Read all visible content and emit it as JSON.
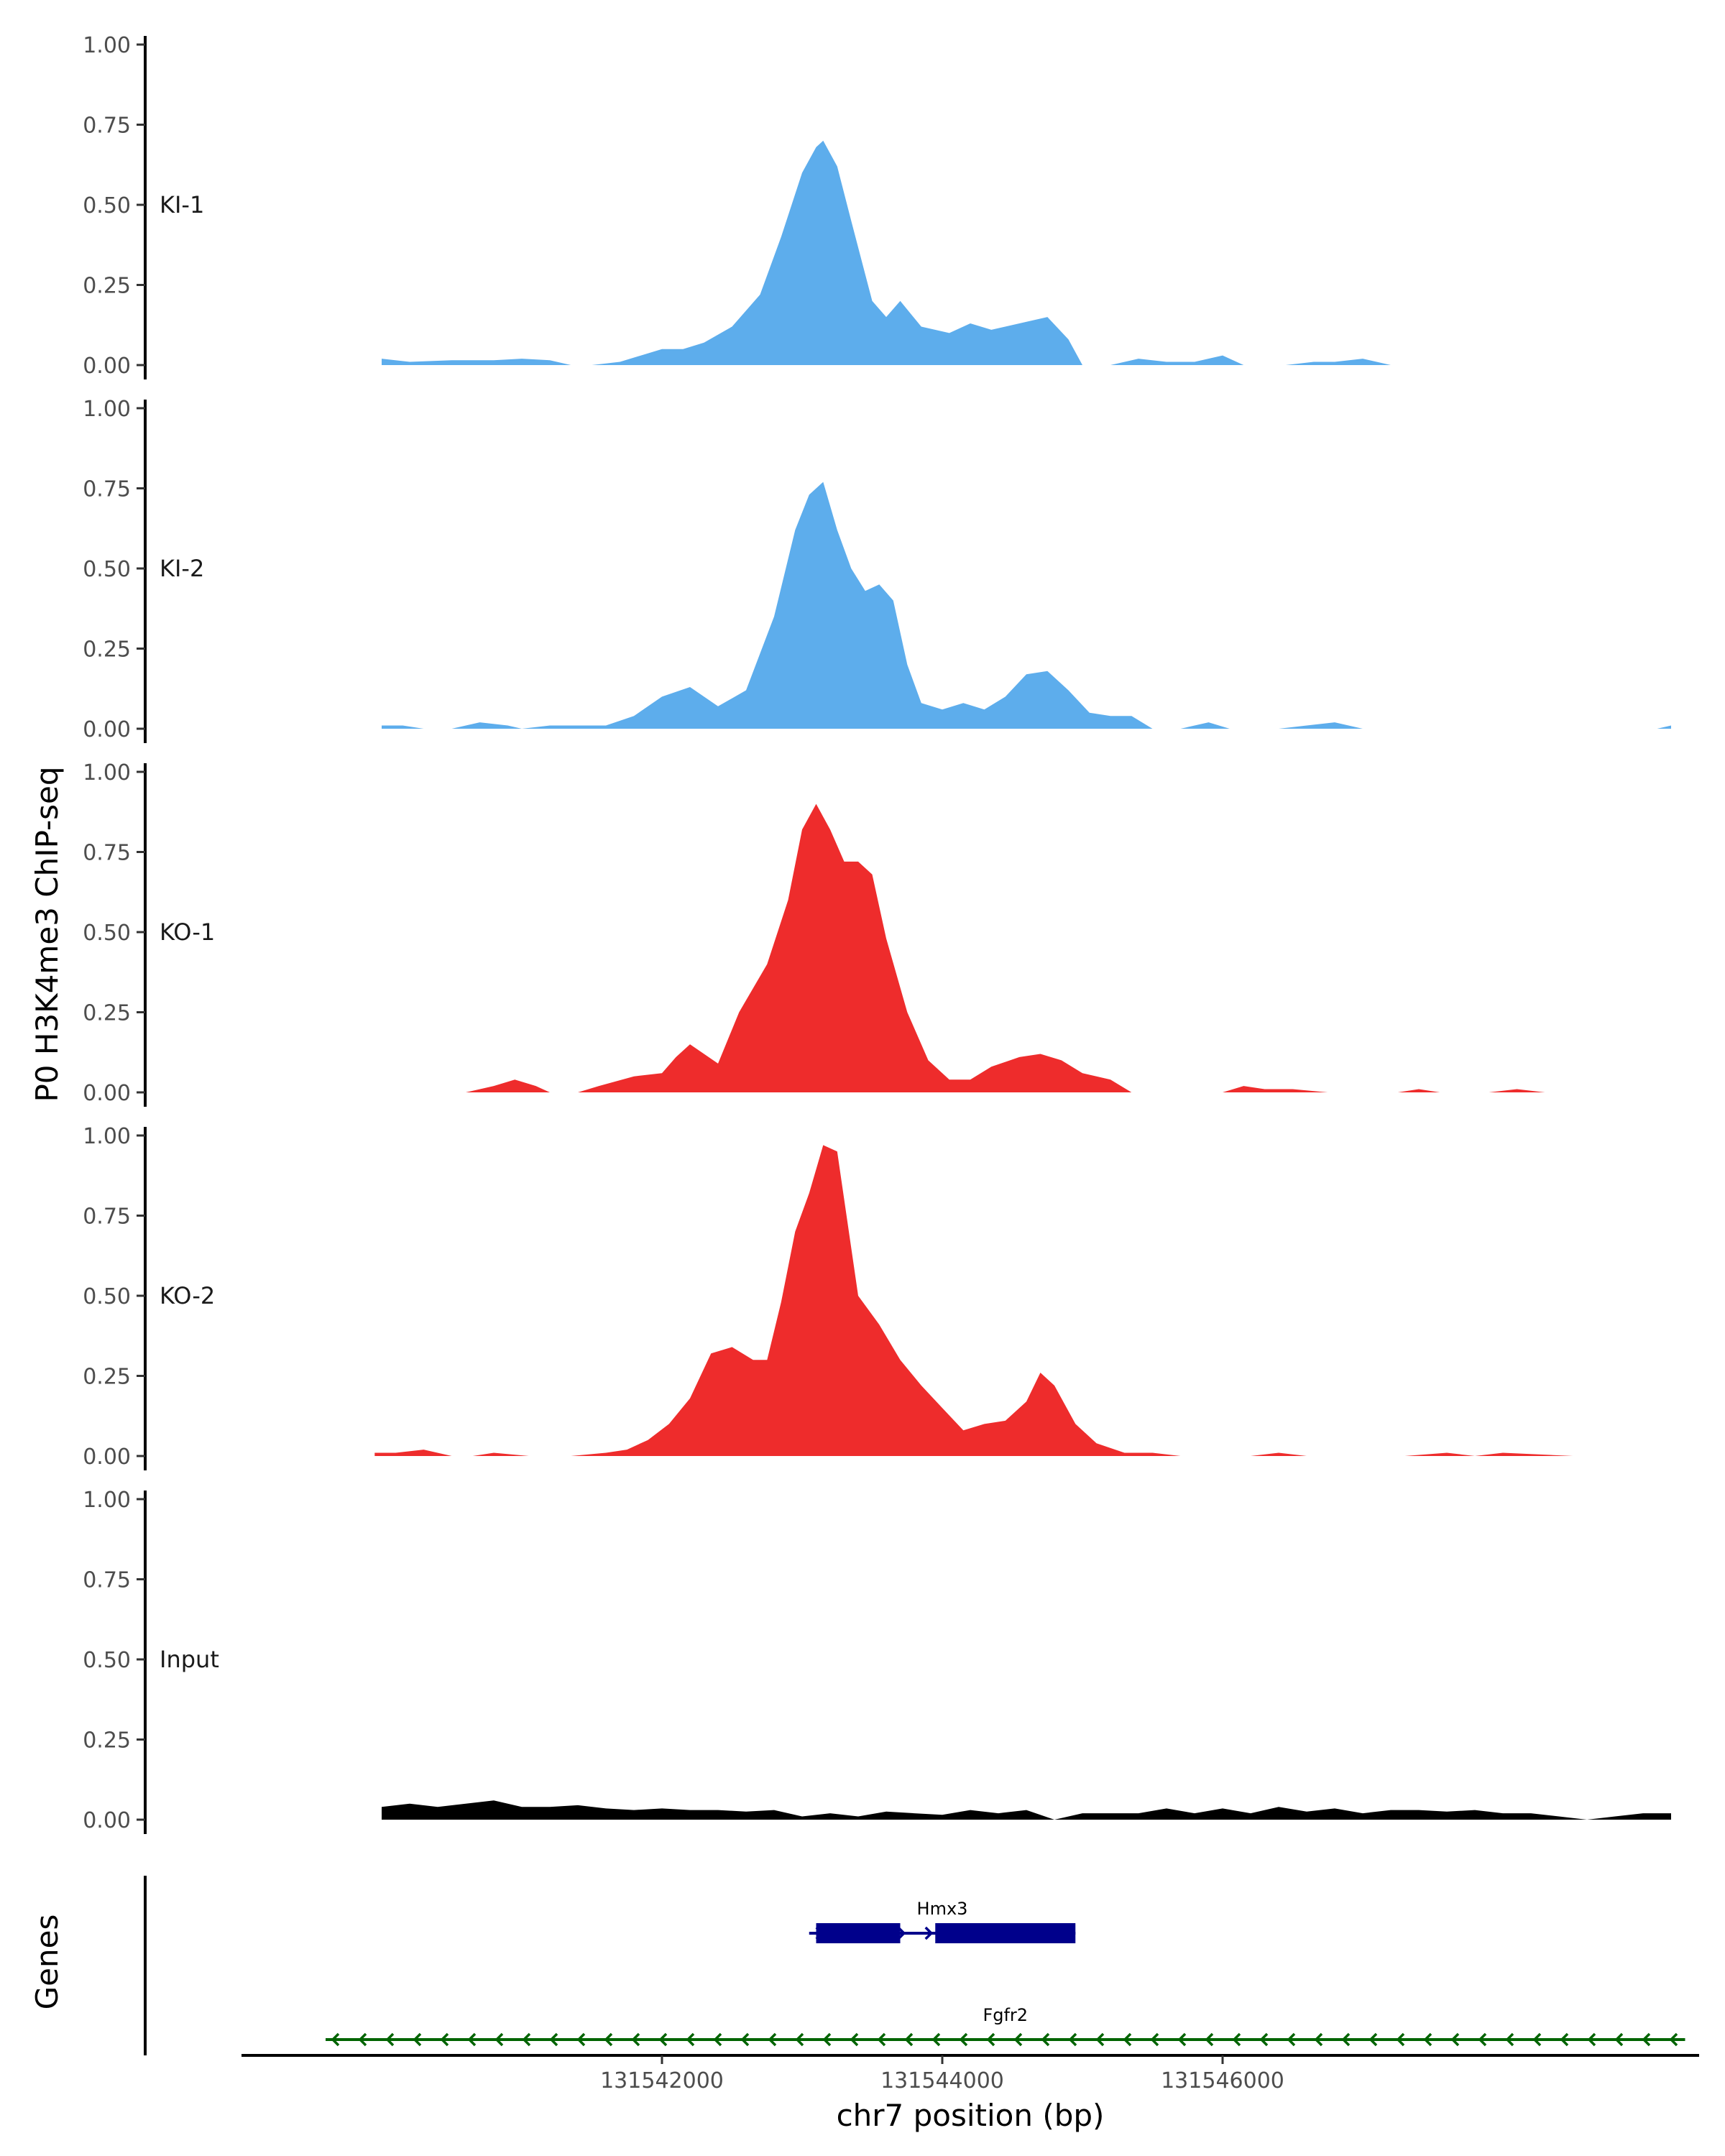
{
  "chart_data": {
    "type": "area",
    "ylabel": "P0 H3K4me3 ChIP-seq",
    "genes_label": "Genes",
    "xlabel": "chr7 position (bp)",
    "xlim": [
      131539000,
      131549400
    ],
    "ylim": [
      0,
      1.0
    ],
    "y_ticks": [
      "0.00",
      "0.25",
      "0.50",
      "0.75",
      "1.00"
    ],
    "x_ticks": [
      {
        "value": 131542000,
        "label": "131542000"
      },
      {
        "value": 131544000,
        "label": "131544000"
      },
      {
        "value": 131546000,
        "label": "131546000"
      }
    ],
    "grid": false,
    "tracks": [
      {
        "name": "KI-1",
        "color": "#5DADEC",
        "points": [
          [
            131540000,
            0.02
          ],
          [
            131540200,
            0.01
          ],
          [
            131540500,
            0.015
          ],
          [
            131540800,
            0.015
          ],
          [
            131541000,
            0.02
          ],
          [
            131541200,
            0.015
          ],
          [
            131541350,
            0.0
          ],
          [
            131541500,
            0.0
          ],
          [
            131541700,
            0.01
          ],
          [
            131541850,
            0.03
          ],
          [
            131542000,
            0.05
          ],
          [
            131542150,
            0.05
          ],
          [
            131542300,
            0.07
          ],
          [
            131542500,
            0.12
          ],
          [
            131542700,
            0.22
          ],
          [
            131542850,
            0.4
          ],
          [
            131543000,
            0.6
          ],
          [
            131543100,
            0.68
          ],
          [
            131543150,
            0.7
          ],
          [
            131543250,
            0.62
          ],
          [
            131543350,
            0.45
          ],
          [
            131543500,
            0.2
          ],
          [
            131543600,
            0.15
          ],
          [
            131543700,
            0.2
          ],
          [
            131543850,
            0.12
          ],
          [
            131544050,
            0.1
          ],
          [
            131544200,
            0.13
          ],
          [
            131544350,
            0.11
          ],
          [
            131544550,
            0.13
          ],
          [
            131544750,
            0.15
          ],
          [
            131544900,
            0.08
          ],
          [
            131545000,
            0.0
          ],
          [
            131545200,
            0.0
          ],
          [
            131545400,
            0.02
          ],
          [
            131545600,
            0.01
          ],
          [
            131545800,
            0.01
          ],
          [
            131546000,
            0.03
          ],
          [
            131546150,
            0.0
          ],
          [
            131546450,
            0.0
          ],
          [
            131546650,
            0.01
          ],
          [
            131546800,
            0.01
          ],
          [
            131547000,
            0.02
          ],
          [
            131547200,
            0.0
          ]
        ]
      },
      {
        "name": "KI-2",
        "color": "#5DADEC",
        "points": [
          [
            131540000,
            0.01
          ],
          [
            131540150,
            0.01
          ],
          [
            131540300,
            0.0
          ],
          [
            131540500,
            0.0
          ],
          [
            131540700,
            0.02
          ],
          [
            131540900,
            0.01
          ],
          [
            131541000,
            0.0
          ],
          [
            131541200,
            0.01
          ],
          [
            131541400,
            0.01
          ],
          [
            131541600,
            0.01
          ],
          [
            131541800,
            0.04
          ],
          [
            131542000,
            0.1
          ],
          [
            131542200,
            0.13
          ],
          [
            131542400,
            0.07
          ],
          [
            131542600,
            0.12
          ],
          [
            131542800,
            0.35
          ],
          [
            131542950,
            0.62
          ],
          [
            131543050,
            0.73
          ],
          [
            131543150,
            0.77
          ],
          [
            131543250,
            0.62
          ],
          [
            131543350,
            0.5
          ],
          [
            131543450,
            0.43
          ],
          [
            131543550,
            0.45
          ],
          [
            131543650,
            0.4
          ],
          [
            131543750,
            0.2
          ],
          [
            131543850,
            0.08
          ],
          [
            131544000,
            0.06
          ],
          [
            131544150,
            0.08
          ],
          [
            131544300,
            0.06
          ],
          [
            131544450,
            0.1
          ],
          [
            131544600,
            0.17
          ],
          [
            131544750,
            0.18
          ],
          [
            131544900,
            0.12
          ],
          [
            131545050,
            0.05
          ],
          [
            131545200,
            0.04
          ],
          [
            131545350,
            0.04
          ],
          [
            131545500,
            0.0
          ],
          [
            131545700,
            0.0
          ],
          [
            131545900,
            0.02
          ],
          [
            131546050,
            0.0
          ],
          [
            131546400,
            0.0
          ],
          [
            131546600,
            0.01
          ],
          [
            131546800,
            0.02
          ],
          [
            131547000,
            0.0
          ],
          [
            131549100,
            0.0
          ],
          [
            131549200,
            0.01
          ]
        ]
      },
      {
        "name": "KO-1",
        "color": "#EE2C2C",
        "points": [
          [
            131540600,
            0.0
          ],
          [
            131540800,
            0.02
          ],
          [
            131540950,
            0.04
          ],
          [
            131541100,
            0.02
          ],
          [
            131541200,
            0.0
          ],
          [
            131541400,
            0.0
          ],
          [
            131541550,
            0.02
          ],
          [
            131541800,
            0.05
          ],
          [
            131542000,
            0.06
          ],
          [
            131542100,
            0.11
          ],
          [
            131542200,
            0.15
          ],
          [
            131542300,
            0.12
          ],
          [
            131542400,
            0.09
          ],
          [
            131542550,
            0.25
          ],
          [
            131542750,
            0.4
          ],
          [
            131542900,
            0.6
          ],
          [
            131543000,
            0.82
          ],
          [
            131543100,
            0.9
          ],
          [
            131543200,
            0.82
          ],
          [
            131543300,
            0.72
          ],
          [
            131543400,
            0.72
          ],
          [
            131543500,
            0.68
          ],
          [
            131543600,
            0.48
          ],
          [
            131543750,
            0.25
          ],
          [
            131543900,
            0.1
          ],
          [
            131544050,
            0.04
          ],
          [
            131544200,
            0.04
          ],
          [
            131544350,
            0.08
          ],
          [
            131544550,
            0.11
          ],
          [
            131544700,
            0.12
          ],
          [
            131544850,
            0.1
          ],
          [
            131545000,
            0.06
          ],
          [
            131545200,
            0.04
          ],
          [
            131545350,
            0.0
          ],
          [
            131546000,
            0.0
          ],
          [
            131546150,
            0.02
          ],
          [
            131546300,
            0.01
          ],
          [
            131546500,
            0.01
          ],
          [
            131546750,
            0.0
          ],
          [
            131547250,
            0.0
          ],
          [
            131547400,
            0.01
          ],
          [
            131547550,
            0.0
          ],
          [
            131547900,
            0.0
          ],
          [
            131548100,
            0.01
          ],
          [
            131548300,
            0.0
          ]
        ]
      },
      {
        "name": "KO-2",
        "color": "#EE2C2C",
        "points": [
          [
            131539950,
            0.01
          ],
          [
            131540100,
            0.01
          ],
          [
            131540300,
            0.02
          ],
          [
            131540500,
            0.0
          ],
          [
            131540650,
            0.0
          ],
          [
            131540800,
            0.01
          ],
          [
            131541050,
            0.0
          ],
          [
            131541350,
            0.0
          ],
          [
            131541600,
            0.01
          ],
          [
            131541750,
            0.02
          ],
          [
            131541900,
            0.05
          ],
          [
            131542050,
            0.1
          ],
          [
            131542200,
            0.18
          ],
          [
            131542350,
            0.32
          ],
          [
            131542500,
            0.34
          ],
          [
            131542650,
            0.3
          ],
          [
            131542750,
            0.3
          ],
          [
            131542850,
            0.48
          ],
          [
            131542950,
            0.7
          ],
          [
            131543050,
            0.82
          ],
          [
            131543150,
            0.97
          ],
          [
            131543250,
            0.95
          ],
          [
            131543400,
            0.5
          ],
          [
            131543550,
            0.41
          ],
          [
            131543700,
            0.3
          ],
          [
            131543850,
            0.22
          ],
          [
            131544000,
            0.15
          ],
          [
            131544150,
            0.08
          ],
          [
            131544300,
            0.1
          ],
          [
            131544450,
            0.11
          ],
          [
            131544600,
            0.17
          ],
          [
            131544700,
            0.26
          ],
          [
            131544800,
            0.22
          ],
          [
            131544950,
            0.1
          ],
          [
            131545100,
            0.04
          ],
          [
            131545300,
            0.01
          ],
          [
            131545500,
            0.01
          ],
          [
            131545700,
            0.0
          ],
          [
            131546200,
            0.0
          ],
          [
            131546400,
            0.01
          ],
          [
            131546600,
            0.0
          ],
          [
            131547300,
            0.0
          ],
          [
            131547600,
            0.01
          ],
          [
            131547800,
            0.0
          ],
          [
            131548000,
            0.01
          ],
          [
            131548500,
            0.0
          ]
        ]
      },
      {
        "name": "Input",
        "color": "#000000",
        "points": [
          [
            131540000,
            0.04
          ],
          [
            131540200,
            0.05
          ],
          [
            131540400,
            0.04
          ],
          [
            131540600,
            0.05
          ],
          [
            131540800,
            0.06
          ],
          [
            131541000,
            0.04
          ],
          [
            131541200,
            0.04
          ],
          [
            131541400,
            0.045
          ],
          [
            131541600,
            0.035
          ],
          [
            131541800,
            0.03
          ],
          [
            131542000,
            0.035
          ],
          [
            131542200,
            0.03
          ],
          [
            131542400,
            0.03
          ],
          [
            131542600,
            0.025
          ],
          [
            131542800,
            0.03
          ],
          [
            131543000,
            0.01
          ],
          [
            131543200,
            0.02
          ],
          [
            131543400,
            0.01
          ],
          [
            131543600,
            0.025
          ],
          [
            131543800,
            0.02
          ],
          [
            131544000,
            0.015
          ],
          [
            131544200,
            0.03
          ],
          [
            131544400,
            0.02
          ],
          [
            131544600,
            0.03
          ],
          [
            131544800,
            0.0
          ],
          [
            131545000,
            0.02
          ],
          [
            131545200,
            0.02
          ],
          [
            131545400,
            0.02
          ],
          [
            131545600,
            0.035
          ],
          [
            131545800,
            0.02
          ],
          [
            131546000,
            0.035
          ],
          [
            131546200,
            0.02
          ],
          [
            131546400,
            0.04
          ],
          [
            131546600,
            0.025
          ],
          [
            131546800,
            0.035
          ],
          [
            131547000,
            0.02
          ],
          [
            131547200,
            0.03
          ],
          [
            131547400,
            0.03
          ],
          [
            131547600,
            0.025
          ],
          [
            131547800,
            0.03
          ],
          [
            131548000,
            0.02
          ],
          [
            131548200,
            0.02
          ],
          [
            131548400,
            0.01
          ],
          [
            131548600,
            0.0
          ],
          [
            131548800,
            0.01
          ],
          [
            131549000,
            0.02
          ],
          [
            131549200,
            0.02
          ]
        ]
      }
    ],
    "genes": [
      {
        "name": "Hmx3",
        "strand": "+",
        "color": "#00008B",
        "start": 131543050,
        "end": 131544950,
        "exons": [
          [
            131543100,
            131543700
          ],
          [
            131543950,
            131544950
          ]
        ]
      },
      {
        "name": "Fgfr2",
        "strand": "-",
        "color": "#006400",
        "start": 131539600,
        "end": 131549300,
        "exons": []
      }
    ]
  }
}
